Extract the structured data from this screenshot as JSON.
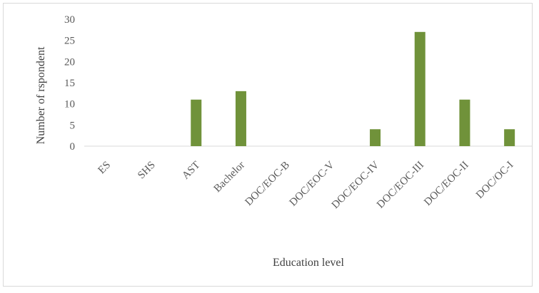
{
  "chart_data": {
    "type": "bar",
    "title": "",
    "xlabel": "Education level",
    "ylabel": "Number of rspondent",
    "categories": [
      "ES",
      "SHS",
      "AST",
      "Bachelor",
      "DOC/EOC-B",
      "DOC/EOC-V",
      "DOC/EOC-IV",
      "DOC/EOC-III",
      "DOC/EOC-II",
      "DOC/OC-I"
    ],
    "values": [
      0,
      0,
      11,
      13,
      0,
      0,
      4,
      27,
      11,
      4
    ],
    "ylim": [
      0,
      30
    ],
    "yticks": [
      "0",
      "5",
      "10",
      "15",
      "20",
      "25",
      "30"
    ],
    "bar_color": "#70923a",
    "grid": false,
    "legend": "none"
  }
}
